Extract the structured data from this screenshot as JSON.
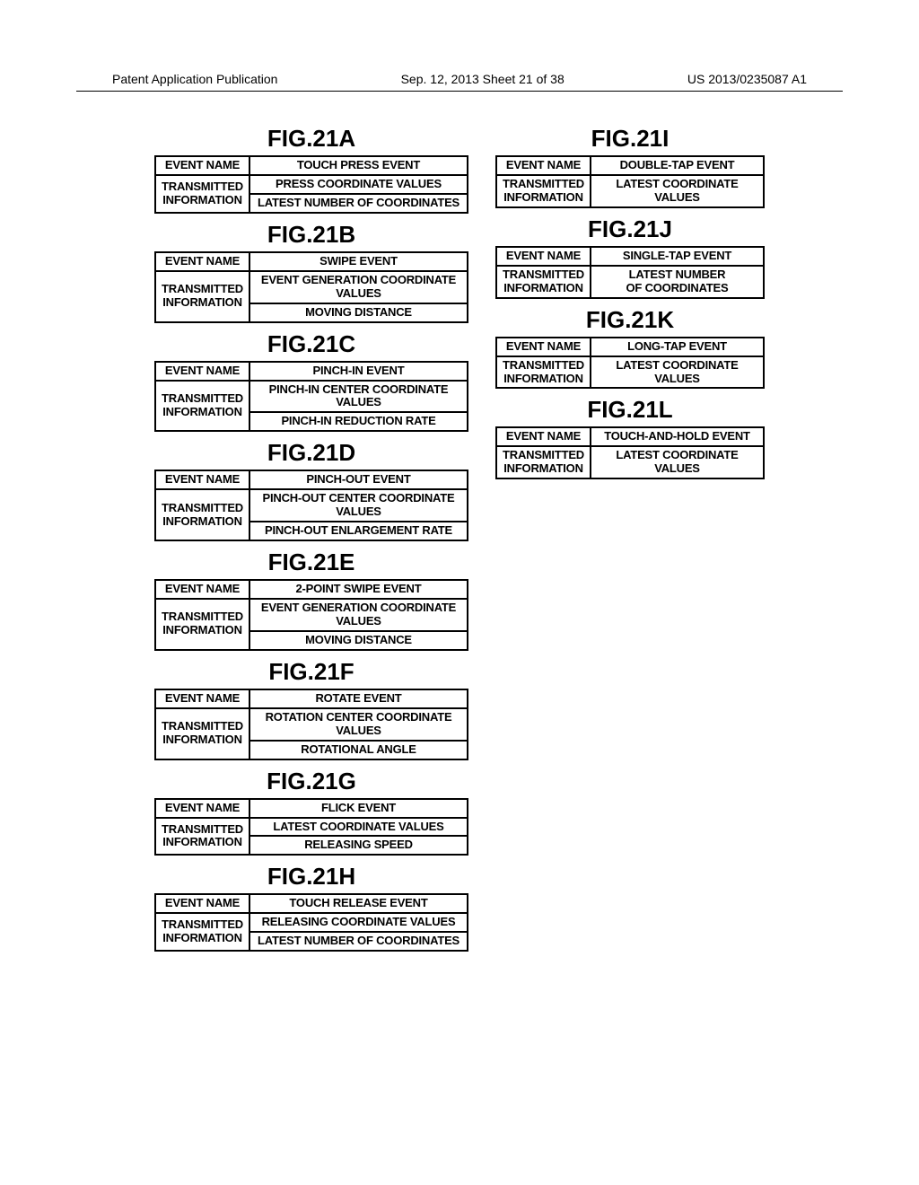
{
  "header": {
    "left": "Patent Application Publication",
    "center": "Sep. 12, 2013  Sheet 21 of 38",
    "right": "US 2013/0235087 A1"
  },
  "labels": {
    "event_name": "EVENT NAME",
    "transmitted1": "TRANSMITTED",
    "transmitted2": "INFORMATION"
  },
  "left_figs": [
    {
      "title": "FIG.21A",
      "name": "TOUCH PRESS EVENT",
      "info": [
        "PRESS COORDINATE VALUES",
        "LATEST NUMBER OF COORDINATES"
      ]
    },
    {
      "title": "FIG.21B",
      "name": "SWIPE EVENT",
      "info": [
        "EVENT GENERATION COORDINATE VALUES",
        "MOVING DISTANCE"
      ]
    },
    {
      "title": "FIG.21C",
      "name": "PINCH-IN EVENT",
      "info": [
        "PINCH-IN CENTER COORDINATE VALUES",
        "PINCH-IN REDUCTION RATE"
      ]
    },
    {
      "title": "FIG.21D",
      "name": "PINCH-OUT EVENT",
      "info": [
        "PINCH-OUT CENTER COORDINATE VALUES",
        "PINCH-OUT ENLARGEMENT RATE"
      ]
    },
    {
      "title": "FIG.21E",
      "name": "2-POINT SWIPE EVENT",
      "info": [
        "EVENT GENERATION COORDINATE VALUES",
        "MOVING DISTANCE"
      ]
    },
    {
      "title": "FIG.21F",
      "name": "ROTATE EVENT",
      "info": [
        "ROTATION CENTER COORDINATE VALUES",
        "ROTATIONAL ANGLE"
      ]
    },
    {
      "title": "FIG.21G",
      "name": "FLICK EVENT",
      "info": [
        "LATEST COORDINATE VALUES",
        "RELEASING SPEED"
      ]
    },
    {
      "title": "FIG.21H",
      "name": "TOUCH RELEASE EVENT",
      "info": [
        "RELEASING COORDINATE VALUES",
        "LATEST NUMBER OF COORDINATES"
      ]
    }
  ],
  "right_figs": [
    {
      "title": "FIG.21I",
      "name": "DOUBLE-TAP EVENT",
      "info_single": "LATEST COORDINATE\nVALUES"
    },
    {
      "title": "FIG.21J",
      "name": "SINGLE-TAP EVENT",
      "info_single": "LATEST NUMBER\nOF COORDINATES"
    },
    {
      "title": "FIG.21K",
      "name": "LONG-TAP EVENT",
      "info_single": "LATEST COORDINATE\nVALUES"
    },
    {
      "title": "FIG.21L",
      "name": "TOUCH-AND-HOLD EVENT",
      "info_single": "LATEST COORDINATE\nVALUES"
    }
  ]
}
